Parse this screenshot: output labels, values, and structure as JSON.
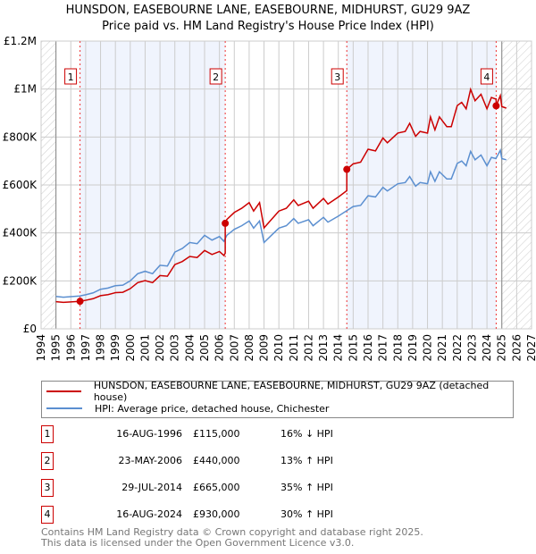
{
  "title": "HUNSDON, EASEBOURNE LANE, EASEBOURNE, MIDHURST, GU29 9AZ",
  "subtitle": "Price paid vs. HM Land Registry's House Price Index (HPI)",
  "chart_data": {
    "type": "line",
    "title": "HUNSDON, EASEBOURNE LANE, EASEBOURNE, MIDHURST, GU29 9AZ",
    "xlim": [
      1994,
      2027
    ],
    "ylim": [
      0,
      1200000
    ],
    "x_ticks": [
      "1994",
      "1995",
      "1996",
      "1997",
      "1998",
      "1999",
      "2000",
      "2001",
      "2002",
      "2003",
      "2004",
      "2005",
      "2006",
      "2007",
      "2008",
      "2009",
      "2010",
      "2011",
      "2012",
      "2013",
      "2014",
      "2015",
      "2016",
      "2017",
      "2018",
      "2019",
      "2020",
      "2021",
      "2022",
      "2023",
      "2024",
      "2025",
      "2026",
      "2027"
    ],
    "y_ticks": [
      {
        "v": 0,
        "label": "£0"
      },
      {
        "v": 200000,
        "label": "£200K"
      },
      {
        "v": 400000,
        "label": "£400K"
      },
      {
        "v": 600000,
        "label": "£600K"
      },
      {
        "v": 800000,
        "label": "£800K"
      },
      {
        "v": 1000000,
        "label": "£1M"
      },
      {
        "v": 1200000,
        "label": "£1.2M"
      }
    ],
    "grid": true,
    "data_range": [
      1995,
      2025.3
    ],
    "series": [
      {
        "name": "HUNSDON, EASEBOURNE LANE, EASEBOURNE, MIDHURST, GU29 9AZ (detached house)",
        "color": "#cc0000",
        "derived_from": "hpi_indexed_to_sales"
      },
      {
        "name": "HPI: Average price, detached house, Chichester",
        "color": "#5b8fd0",
        "x": [
          1995,
          1995.5,
          1996,
          1996.6,
          1997,
          1997.5,
          1998,
          1998.5,
          1999,
          1999.5,
          2000,
          2000.5,
          2001,
          2001.5,
          2002,
          2002.5,
          2003,
          2003.5,
          2004,
          2004.5,
          2005,
          2005.5,
          2006,
          2006.3,
          2006.5,
          2007,
          2007.5,
          2008,
          2008.3,
          2008.7,
          2009,
          2009.5,
          2010,
          2010.5,
          2011,
          2011.3,
          2012,
          2012.3,
          2013,
          2013.3,
          2014,
          2014.5,
          2015,
          2015.5,
          2016,
          2016.5,
          2017,
          2017.3,
          2018,
          2018.5,
          2018.8,
          2019.2,
          2019.5,
          2020,
          2020.2,
          2020.5,
          2020.8,
          2021.3,
          2021.6,
          2022,
          2022.3,
          2022.6,
          2022.9,
          2023.2,
          2023.6,
          2024,
          2024.3,
          2024.6,
          2024.9,
          2025,
          2025.3
        ],
        "y": [
          135000,
          132000,
          134000,
          137000,
          142000,
          150000,
          165000,
          170000,
          180000,
          182000,
          200000,
          230000,
          240000,
          230000,
          265000,
          262000,
          320000,
          335000,
          360000,
          355000,
          390000,
          370000,
          385000,
          365000,
          390000,
          415000,
          430000,
          450000,
          420000,
          450000,
          360000,
          390000,
          420000,
          430000,
          460000,
          440000,
          455000,
          430000,
          465000,
          445000,
          470000,
          490000,
          510000,
          515000,
          555000,
          550000,
          590000,
          575000,
          605000,
          610000,
          635000,
          595000,
          610000,
          605000,
          655000,
          615000,
          655000,
          625000,
          625000,
          690000,
          700000,
          680000,
          740000,
          705000,
          725000,
          680000,
          715000,
          710000,
          745000,
          710000,
          705000
        ]
      }
    ],
    "sales": [
      {
        "n": "1",
        "t": 1996.62,
        "date": "16-AUG-1996",
        "price": 115000,
        "price_label": "£115,000",
        "hpi": "16% ↓ HPI"
      },
      {
        "n": "2",
        "t": 2006.39,
        "date": "23-MAY-2006",
        "price": 440000,
        "price_label": "£440,000",
        "hpi": "13% ↑ HPI"
      },
      {
        "n": "3",
        "t": 2014.57,
        "date": "29-JUL-2014",
        "price": 665000,
        "price_label": "£665,000",
        "hpi": "35% ↑ HPI"
      },
      {
        "n": "4",
        "t": 2024.62,
        "date": "16-AUG-2024",
        "price": 930000,
        "price_label": "£930,000",
        "hpi": "30% ↑ HPI"
      }
    ]
  },
  "legend": {
    "property": "HUNSDON, EASEBOURNE LANE, EASEBOURNE, MIDHURST, GU29 9AZ (detached house)",
    "hpi": "HPI: Average price, detached house, Chichester"
  },
  "footer": {
    "line1": "Contains HM Land Registry data © Crown copyright and database right 2025.",
    "line2": "This data is licensed under the Open Government Licence v3.0."
  }
}
